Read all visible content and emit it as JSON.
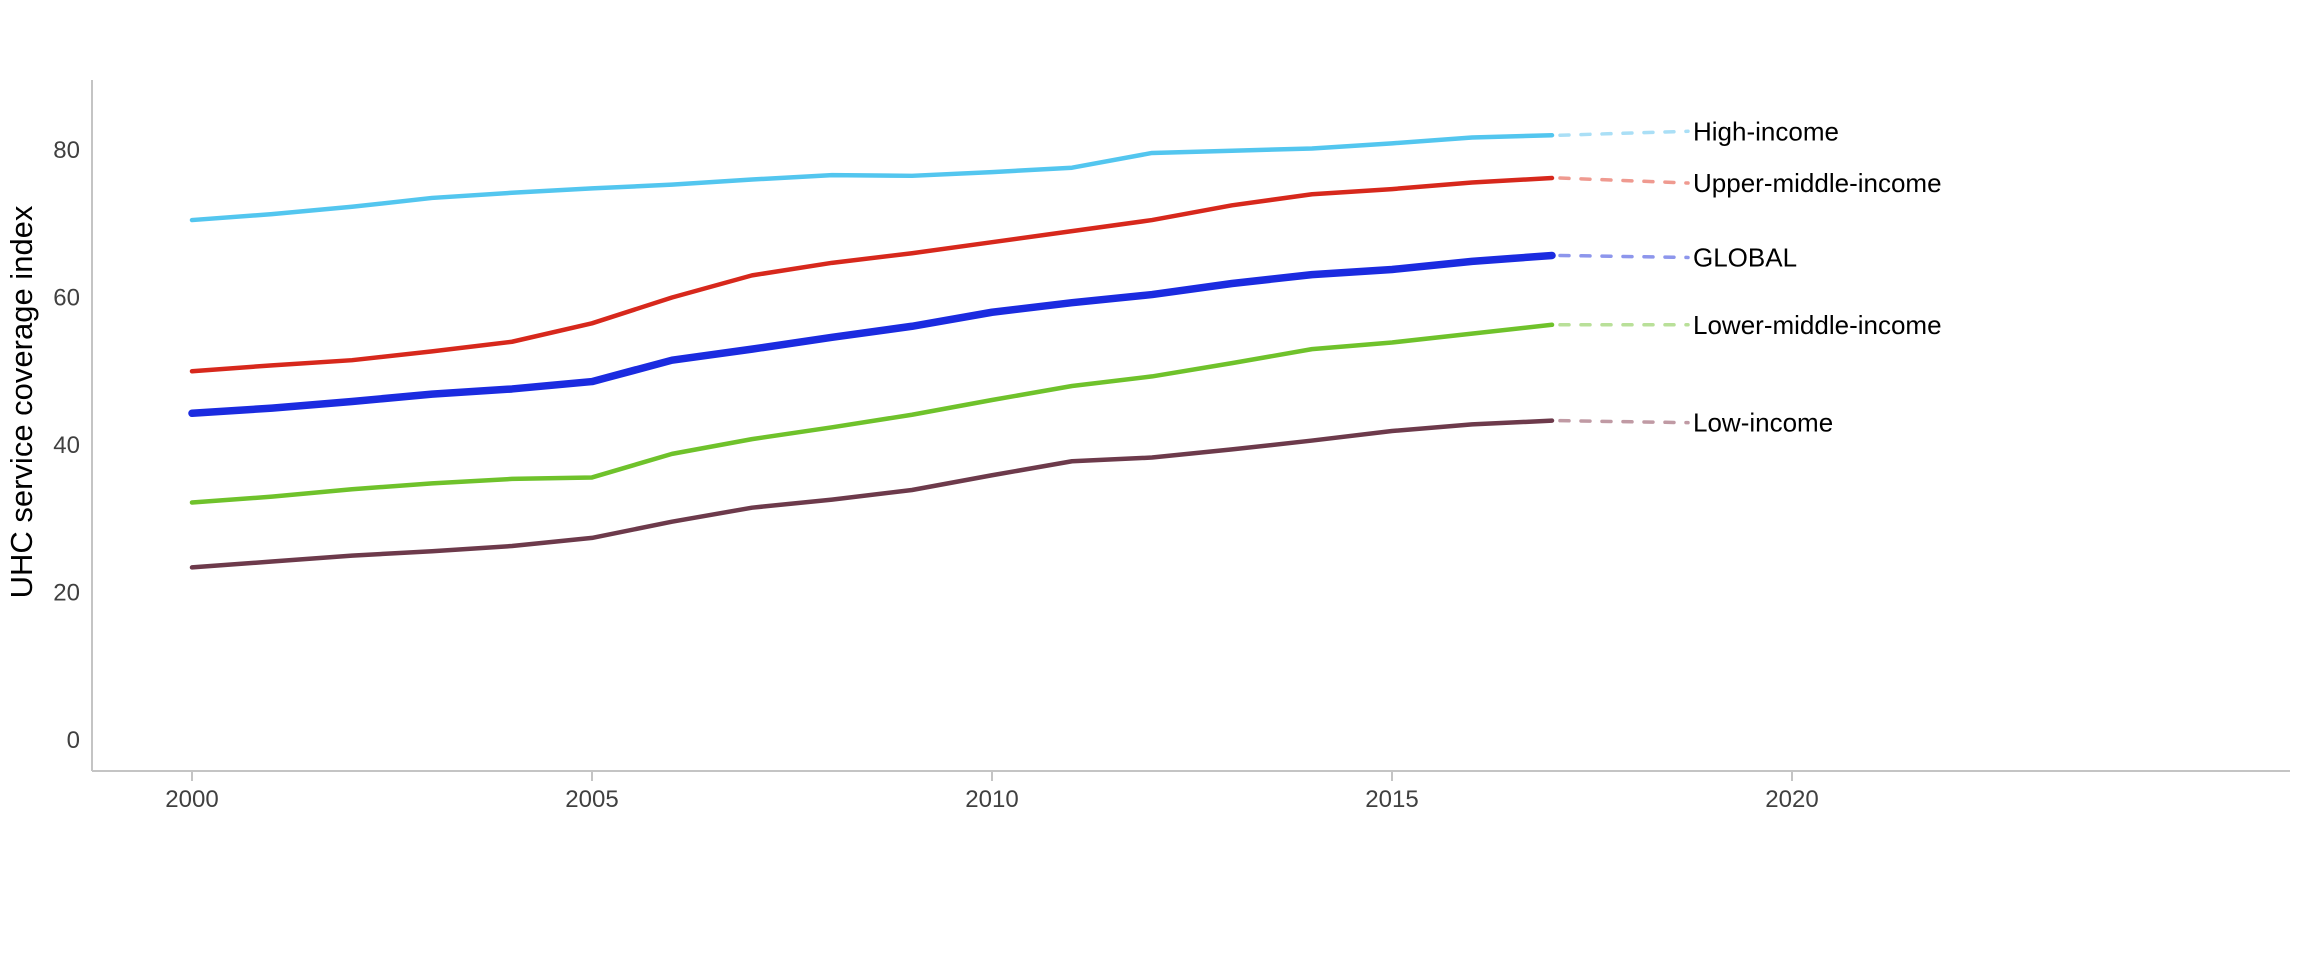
{
  "chart_data": {
    "type": "line",
    "title": "",
    "xlabel": "",
    "ylabel": "UHC service coverage index",
    "x": [
      2000,
      2001,
      2002,
      2003,
      2004,
      2005,
      2006,
      2007,
      2008,
      2009,
      2010,
      2011,
      2012,
      2013,
      2014,
      2015,
      2016,
      2017
    ],
    "x_ticks": [
      2000,
      2005,
      2010,
      2015,
      2020
    ],
    "y_ticks": [
      0,
      20,
      40,
      60,
      80
    ],
    "xlim": [
      1998.8,
      2026.3
    ],
    "ylim": [
      0,
      88
    ],
    "grid": false,
    "legend_position": "direct-labels-right",
    "axis_color": "#c4c4c4",
    "tick_label_color": "#404040",
    "label_text_color": "#000000",
    "series": [
      {
        "name": "High-income",
        "color": "#53c6ef",
        "leader_color": "#aadff6",
        "width": 4.5,
        "values": [
          70.5,
          71.3,
          72.3,
          73.5,
          74.2,
          74.8,
          75.3,
          76.0,
          76.6,
          76.5,
          77.0,
          77.6,
          79.6,
          79.9,
          80.2,
          80.9,
          81.7,
          82.0
        ]
      },
      {
        "name": "Upper-middle-income",
        "color": "#d7281c",
        "leader_color": "#ef9a90",
        "width": 4.5,
        "values": [
          50.0,
          50.8,
          51.5,
          52.7,
          54.0,
          56.5,
          60.0,
          63.0,
          64.7,
          66.0,
          67.5,
          69.0,
          70.5,
          72.5,
          74.0,
          74.7,
          75.6,
          76.2
        ]
      },
      {
        "name": "GLOBAL",
        "color": "#1b2be0",
        "leader_color": "#8d96ec",
        "width": 7.5,
        "values": [
          44.3,
          45.0,
          45.9,
          46.9,
          47.6,
          48.6,
          51.5,
          53.0,
          54.6,
          56.1,
          58.0,
          59.3,
          60.4,
          61.9,
          63.1,
          63.8,
          64.9,
          65.7
        ]
      },
      {
        "name": "Lower-middle-income",
        "color": "#6fc22b",
        "leader_color": "#b9e099",
        "width": 4.5,
        "values": [
          32.2,
          33.0,
          34.0,
          34.8,
          35.4,
          35.6,
          38.8,
          40.8,
          42.4,
          44.1,
          46.1,
          48.0,
          49.3,
          51.1,
          53.0,
          53.9,
          55.1,
          56.3
        ]
      },
      {
        "name": "Low-income",
        "color": "#6d3a4b",
        "leader_color": "#c09aa4",
        "width": 4.5,
        "values": [
          23.4,
          24.2,
          25.0,
          25.6,
          26.3,
          27.4,
          29.6,
          31.5,
          32.6,
          33.9,
          35.9,
          37.8,
          38.3,
          39.4,
          40.6,
          41.9,
          42.8,
          43.3
        ]
      }
    ]
  }
}
